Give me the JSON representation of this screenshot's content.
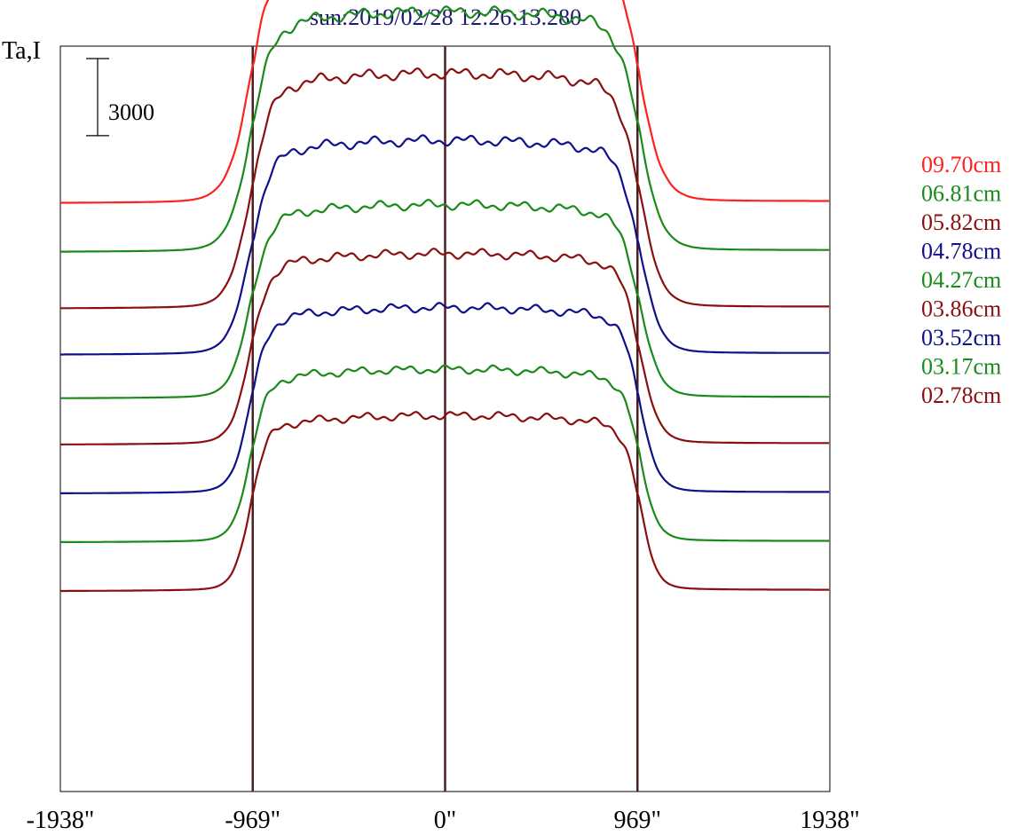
{
  "chart_data": {
    "type": "line",
    "title": "sun:2019/02/28 12:26:13.280",
    "ylabel": "Ta,I",
    "xlabel": "",
    "x_ticks": [
      {
        "value": -1938,
        "label": "-1938\""
      },
      {
        "value": -969,
        "label": "-969\""
      },
      {
        "value": 0,
        "label": "0\""
      },
      {
        "value": 969,
        "label": "969\""
      },
      {
        "value": 1938,
        "label": "1938\""
      }
    ],
    "xlim": [
      -1938,
      1938
    ],
    "ylim": [
      -1000,
      28000
    ],
    "limb_lines": [
      -969,
      0,
      969
    ],
    "scale_bar": {
      "value": 3000,
      "label": "3000"
    },
    "series": [
      {
        "name": "09.70cm",
        "color": "#ff2020",
        "baseline": 21900,
        "amplitude": 10000
      },
      {
        "name": "06.81cm",
        "color": "#1a8a1a",
        "baseline": 20000,
        "amplitude": 9300
      },
      {
        "name": "05.82cm",
        "color": "#8a1010",
        "baseline": 17800,
        "amplitude": 9100
      },
      {
        "name": "04.78cm",
        "color": "#10108a",
        "baseline": 16000,
        "amplitude": 8300
      },
      {
        "name": "04.27cm",
        "color": "#1a8a1a",
        "baseline": 14300,
        "amplitude": 7500
      },
      {
        "name": "03.86cm",
        "color": "#8a1010",
        "baseline": 12500,
        "amplitude": 7400
      },
      {
        "name": "03.52cm",
        "color": "#10108a",
        "baseline": 10600,
        "amplitude": 7200
      },
      {
        "name": "03.17cm",
        "color": "#1a8a1a",
        "baseline": 8700,
        "amplitude": 6700
      },
      {
        "name": "02.78cm",
        "color": "#8a1010",
        "baseline": 6800,
        "amplitude": 6800
      }
    ],
    "grid": false,
    "legend_position": "right"
  }
}
